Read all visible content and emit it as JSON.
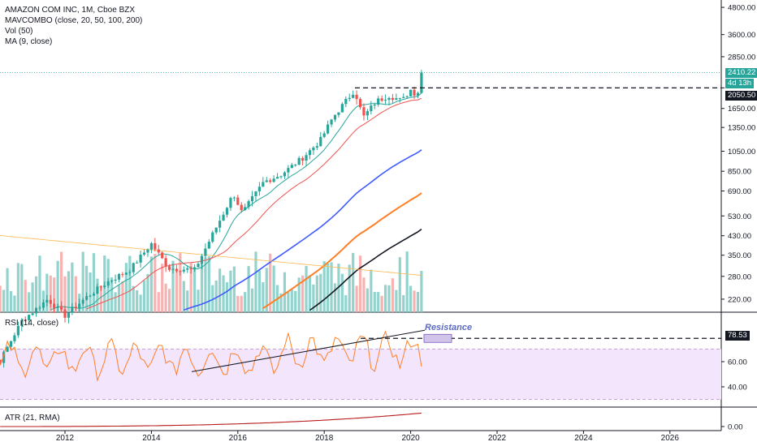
{
  "header": {
    "symbol_line": "AMAZON COM INC, 1M, Cboe BZX",
    "indicator_mavcombo": "MAVCOMBO (close, 20, 50, 100, 200)",
    "indicator_vol": "Vol (50)",
    "indicator_ma": "MA (9, close)"
  },
  "panes": {
    "rsi_label": "RSI (14, close)",
    "atr_label": "ATR (21, RMA)",
    "resistance_text": "Resistance"
  },
  "price_tags": {
    "last": "2410.22",
    "countdown": "4d 13h",
    "level": "2050.50",
    "rsi_level": "78.53"
  },
  "colors": {
    "up": "#26a69a",
    "down": "#ef5350",
    "ma20": "#ef5350",
    "ma50": "#3d5afe",
    "ma100": "#ff7f27",
    "ma200": "#131722",
    "ma9": "#26a69a",
    "rsi_line": "#ff7f27",
    "rsi_band": "#f3e5fb",
    "atr_line": "#b71c1c",
    "resistance_box": "#d1c4e9",
    "resistance_text": "#5c6bc0"
  },
  "chart_data": {
    "type": "candlestick",
    "timeframe": "1M",
    "y_scale": "log",
    "price_axis_ticks": [
      4800,
      3600,
      2850,
      2050.5,
      1650,
      1350,
      1050,
      850,
      690,
      530,
      430,
      350,
      280,
      220
    ],
    "price_axis_tick_labels": [
      "4800.00",
      "3600.00",
      "2850.00",
      "2050.50",
      "1650.00",
      "1350.00",
      "1050.00",
      "850.00",
      "690.00",
      "530.00",
      "430.00",
      "350.00",
      "280.00",
      "220.00"
    ],
    "time_axis_labels": [
      "2012",
      "2014",
      "2016",
      "2018",
      "2020",
      "2022",
      "2024",
      "2026"
    ],
    "horizontal_level": 2050.5,
    "last_price": 2410.22,
    "rsi": {
      "axis_ticks": [
        60,
        40
      ],
      "axis_tick_labels": [
        "60.00",
        "40.00"
      ],
      "level": 78.53,
      "band_upper": 70,
      "band_lower": 30
    },
    "atr": {
      "axis_ticks": [
        0
      ],
      "axis_tick_labels": [
        "0.00"
      ]
    }
  }
}
